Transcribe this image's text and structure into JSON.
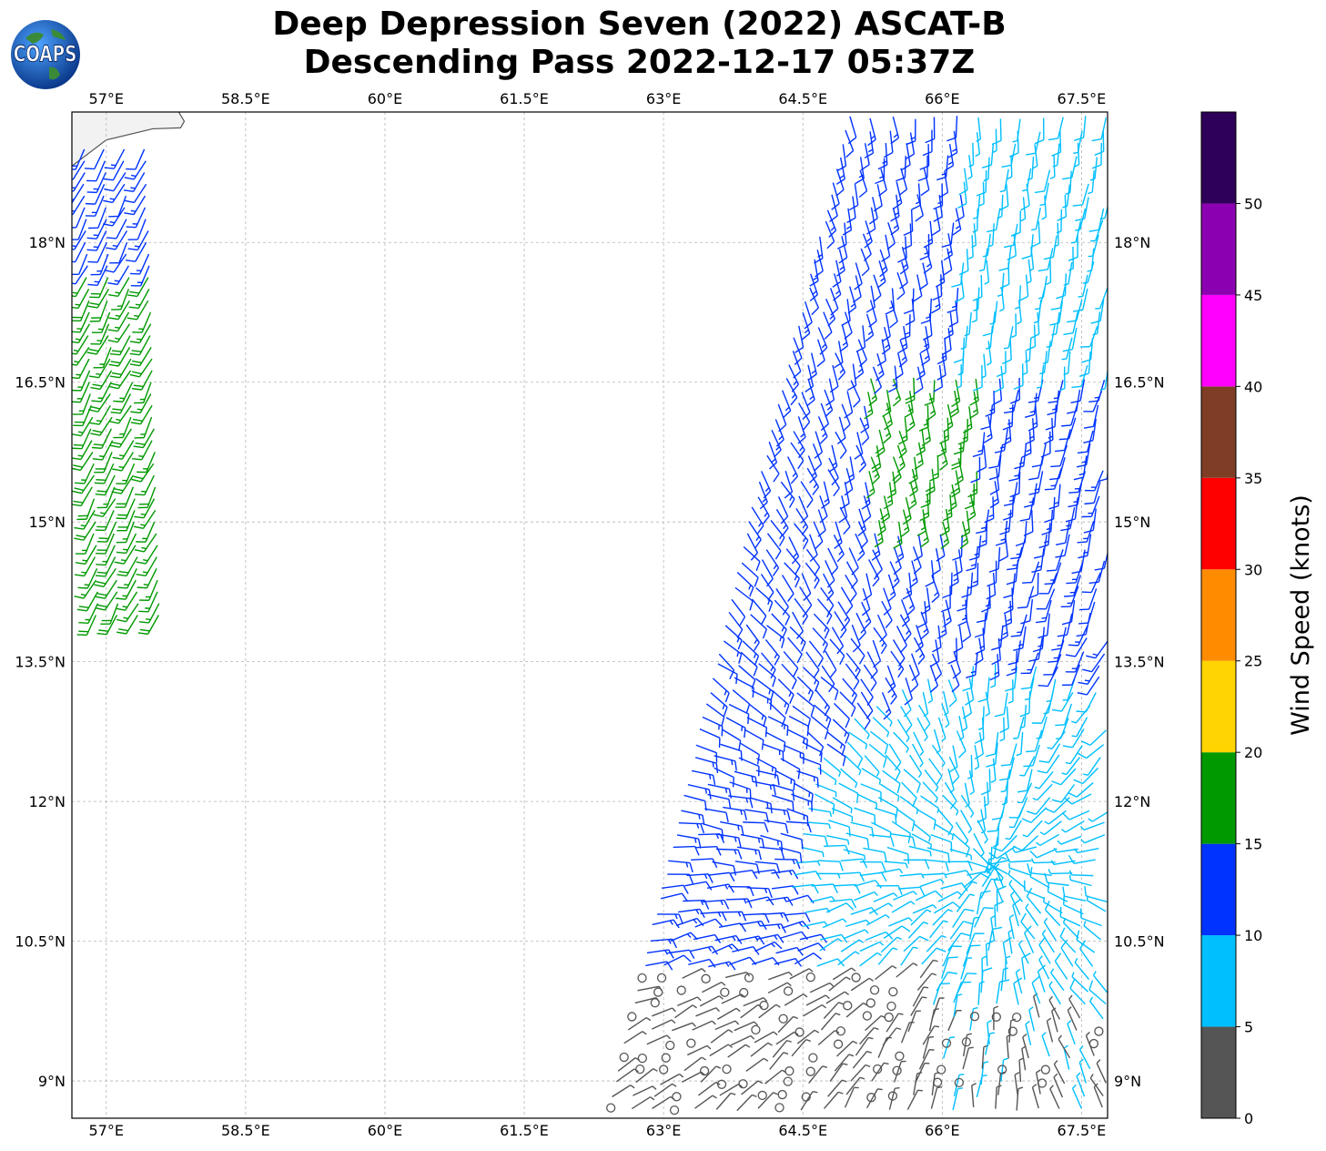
{
  "title": {
    "line1": "Deep Depression Seven (2022) ASCAT-B",
    "line2": "Descending Pass 2022-12-17 05:37Z"
  },
  "logo": {
    "text": "COAPS",
    "icon": "globe-icon"
  },
  "map": {
    "lon_range": [
      56.63,
      67.78
    ],
    "lat_range": [
      8.6,
      19.4
    ],
    "lon_ticks": [
      57,
      58.5,
      60,
      61.5,
      63,
      64.5,
      66,
      67.5
    ],
    "lon_labels": [
      "57°E",
      "58.5°E",
      "60°E",
      "61.5°E",
      "63°E",
      "64.5°E",
      "66°E",
      "67.5°E"
    ],
    "lat_ticks": [
      9,
      10.5,
      12,
      13.5,
      15,
      16.5,
      18
    ],
    "lat_labels": [
      "9°N",
      "10.5°N",
      "12°N",
      "13.5°N",
      "15°N",
      "16.5°N",
      "18°N"
    ],
    "gridlines": true,
    "land_color": "#f2f2f2",
    "coastline_color": "#555555"
  },
  "colorbar": {
    "label": "Wind Speed (knots)",
    "ticks": [
      "0",
      "5",
      "10",
      "15",
      "20",
      "25",
      "30",
      "35",
      "40",
      "45",
      "50"
    ],
    "colors": [
      "#555555",
      "#00bfff",
      "#0033ff",
      "#009900",
      "#ffd400",
      "#ff8c00",
      "#ff0000",
      "#7f3d26",
      "#ff00ff",
      "#8b00b0",
      "#2e0059"
    ]
  },
  "wind_barbs": {
    "units": "knots",
    "swaths": [
      {
        "name": "western-swath",
        "lon_range": [
          56.6,
          57.8
        ],
        "lat_range": [
          14.0,
          19.0
        ],
        "speed_kt": "10-20"
      },
      {
        "name": "eastern-swath",
        "lon_range": [
          62.5,
          67.8
        ],
        "lat_range": [
          8.6,
          19.4
        ],
        "speed_kt": "0-20"
      }
    ]
  }
}
